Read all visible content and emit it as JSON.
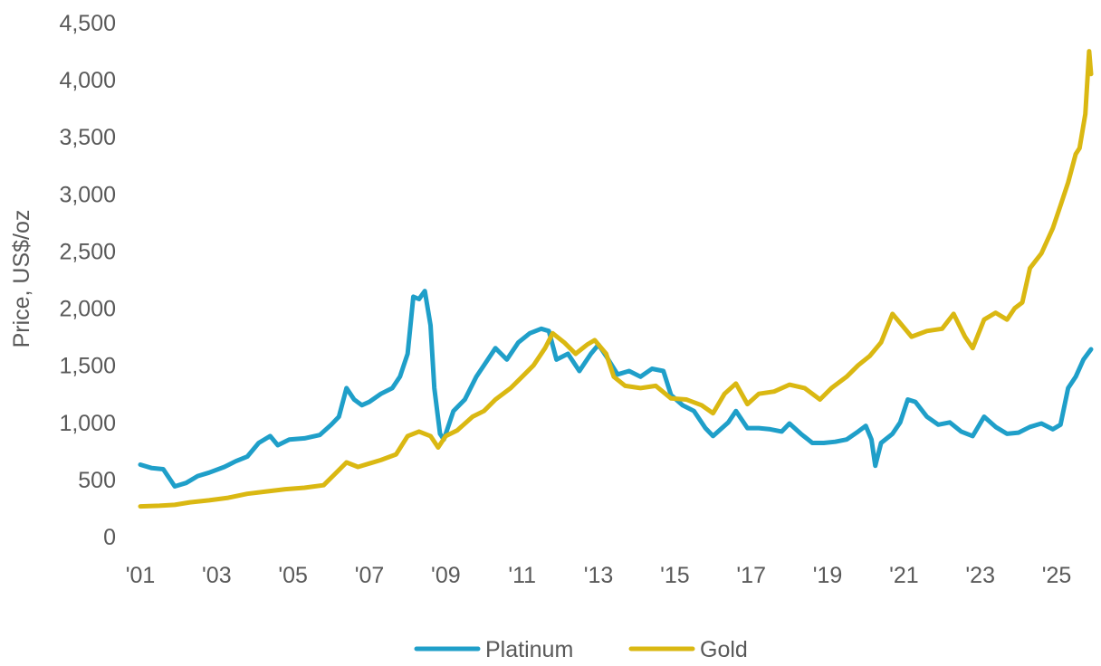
{
  "chart_data": {
    "type": "line",
    "title": "",
    "xlabel": "",
    "ylabel": "Price, US$/oz",
    "ylim": [
      0,
      4500
    ],
    "xlim": [
      2001.0,
      2025.9
    ],
    "yticks": [
      {
        "value": 0,
        "label": "0"
      },
      {
        "value": 500,
        "label": "500"
      },
      {
        "value": 1000,
        "label": "1,000"
      },
      {
        "value": 1500,
        "label": "1,500"
      },
      {
        "value": 2000,
        "label": "2,000"
      },
      {
        "value": 2500,
        "label": "2,500"
      },
      {
        "value": 3000,
        "label": "3,000"
      },
      {
        "value": 3500,
        "label": "3,500"
      },
      {
        "value": 4000,
        "label": "4,000"
      },
      {
        "value": 4500,
        "label": "4,500"
      }
    ],
    "xticks": [
      {
        "value": 2001,
        "label": "'01"
      },
      {
        "value": 2003,
        "label": "'03"
      },
      {
        "value": 2005,
        "label": "'05"
      },
      {
        "value": 2007,
        "label": "'07"
      },
      {
        "value": 2009,
        "label": "'09"
      },
      {
        "value": 2011,
        "label": "'11"
      },
      {
        "value": 2013,
        "label": "'13"
      },
      {
        "value": 2015,
        "label": "'15"
      },
      {
        "value": 2017,
        "label": "'17"
      },
      {
        "value": 2019,
        "label": "'19"
      },
      {
        "value": 2021,
        "label": "'21"
      },
      {
        "value": 2023,
        "label": "'23"
      },
      {
        "value": 2025,
        "label": "'25"
      }
    ],
    "grid": false,
    "legend_position": "bottom-center",
    "series": [
      {
        "name": "Platinum",
        "color": "#1f9fc9",
        "points": [
          [
            2001.0,
            630
          ],
          [
            2001.3,
            600
          ],
          [
            2001.6,
            590
          ],
          [
            2001.9,
            440
          ],
          [
            2002.2,
            470
          ],
          [
            2002.5,
            530
          ],
          [
            2002.8,
            560
          ],
          [
            2003.2,
            610
          ],
          [
            2003.5,
            660
          ],
          [
            2003.8,
            700
          ],
          [
            2004.1,
            820
          ],
          [
            2004.4,
            880
          ],
          [
            2004.6,
            800
          ],
          [
            2004.9,
            850
          ],
          [
            2005.3,
            860
          ],
          [
            2005.7,
            890
          ],
          [
            2006.0,
            980
          ],
          [
            2006.2,
            1050
          ],
          [
            2006.4,
            1300
          ],
          [
            2006.6,
            1200
          ],
          [
            2006.8,
            1150
          ],
          [
            2007.0,
            1180
          ],
          [
            2007.3,
            1250
          ],
          [
            2007.6,
            1300
          ],
          [
            2007.8,
            1400
          ],
          [
            2008.0,
            1600
          ],
          [
            2008.15,
            2100
          ],
          [
            2008.3,
            2080
          ],
          [
            2008.45,
            2150
          ],
          [
            2008.6,
            1850
          ],
          [
            2008.7,
            1300
          ],
          [
            2008.85,
            900
          ],
          [
            2008.95,
            850
          ],
          [
            2009.2,
            1100
          ],
          [
            2009.5,
            1200
          ],
          [
            2009.8,
            1400
          ],
          [
            2010.0,
            1500
          ],
          [
            2010.3,
            1650
          ],
          [
            2010.6,
            1550
          ],
          [
            2010.9,
            1700
          ],
          [
            2011.2,
            1780
          ],
          [
            2011.5,
            1820
          ],
          [
            2011.7,
            1800
          ],
          [
            2011.9,
            1550
          ],
          [
            2012.2,
            1600
          ],
          [
            2012.5,
            1450
          ],
          [
            2012.8,
            1600
          ],
          [
            2013.0,
            1680
          ],
          [
            2013.2,
            1580
          ],
          [
            2013.5,
            1420
          ],
          [
            2013.8,
            1450
          ],
          [
            2014.1,
            1400
          ],
          [
            2014.4,
            1470
          ],
          [
            2014.7,
            1450
          ],
          [
            2014.9,
            1240
          ],
          [
            2015.2,
            1150
          ],
          [
            2015.5,
            1100
          ],
          [
            2015.8,
            950
          ],
          [
            2016.0,
            880
          ],
          [
            2016.4,
            1000
          ],
          [
            2016.6,
            1100
          ],
          [
            2016.9,
            950
          ],
          [
            2017.2,
            950
          ],
          [
            2017.5,
            940
          ],
          [
            2017.8,
            920
          ],
          [
            2018.0,
            990
          ],
          [
            2018.3,
            900
          ],
          [
            2018.6,
            820
          ],
          [
            2018.9,
            820
          ],
          [
            2019.2,
            830
          ],
          [
            2019.5,
            850
          ],
          [
            2019.8,
            920
          ],
          [
            2020.0,
            970
          ],
          [
            2020.15,
            850
          ],
          [
            2020.25,
            620
          ],
          [
            2020.4,
            820
          ],
          [
            2020.7,
            900
          ],
          [
            2020.9,
            1000
          ],
          [
            2021.1,
            1200
          ],
          [
            2021.3,
            1180
          ],
          [
            2021.6,
            1050
          ],
          [
            2021.9,
            980
          ],
          [
            2022.2,
            1000
          ],
          [
            2022.5,
            920
          ],
          [
            2022.8,
            880
          ],
          [
            2023.1,
            1050
          ],
          [
            2023.4,
            960
          ],
          [
            2023.7,
            900
          ],
          [
            2024.0,
            910
          ],
          [
            2024.3,
            960
          ],
          [
            2024.6,
            990
          ],
          [
            2024.9,
            940
          ],
          [
            2025.1,
            980
          ],
          [
            2025.3,
            1300
          ],
          [
            2025.5,
            1400
          ],
          [
            2025.7,
            1550
          ],
          [
            2025.9,
            1640
          ]
        ]
      },
      {
        "name": "Gold",
        "color": "#dab812",
        "points": [
          [
            2001.0,
            265
          ],
          [
            2001.5,
            270
          ],
          [
            2001.9,
            278
          ],
          [
            2002.3,
            300
          ],
          [
            2002.8,
            318
          ],
          [
            2003.3,
            340
          ],
          [
            2003.8,
            375
          ],
          [
            2004.3,
            395
          ],
          [
            2004.8,
            415
          ],
          [
            2005.3,
            428
          ],
          [
            2005.8,
            450
          ],
          [
            2006.1,
            550
          ],
          [
            2006.4,
            650
          ],
          [
            2006.7,
            610
          ],
          [
            2007.0,
            640
          ],
          [
            2007.3,
            670
          ],
          [
            2007.7,
            720
          ],
          [
            2008.0,
            880
          ],
          [
            2008.3,
            920
          ],
          [
            2008.6,
            880
          ],
          [
            2008.8,
            780
          ],
          [
            2009.0,
            880
          ],
          [
            2009.3,
            930
          ],
          [
            2009.7,
            1050
          ],
          [
            2010.0,
            1100
          ],
          [
            2010.3,
            1200
          ],
          [
            2010.7,
            1300
          ],
          [
            2011.0,
            1400
          ],
          [
            2011.3,
            1500
          ],
          [
            2011.6,
            1650
          ],
          [
            2011.8,
            1780
          ],
          [
            2012.1,
            1700
          ],
          [
            2012.4,
            1600
          ],
          [
            2012.7,
            1680
          ],
          [
            2012.9,
            1720
          ],
          [
            2013.2,
            1600
          ],
          [
            2013.4,
            1400
          ],
          [
            2013.7,
            1320
          ],
          [
            2014.1,
            1300
          ],
          [
            2014.5,
            1320
          ],
          [
            2014.9,
            1210
          ],
          [
            2015.3,
            1200
          ],
          [
            2015.7,
            1150
          ],
          [
            2016.0,
            1080
          ],
          [
            2016.3,
            1250
          ],
          [
            2016.6,
            1340
          ],
          [
            2016.9,
            1160
          ],
          [
            2017.2,
            1250
          ],
          [
            2017.6,
            1270
          ],
          [
            2018.0,
            1330
          ],
          [
            2018.4,
            1300
          ],
          [
            2018.8,
            1200
          ],
          [
            2019.1,
            1300
          ],
          [
            2019.5,
            1400
          ],
          [
            2019.8,
            1500
          ],
          [
            2020.1,
            1580
          ],
          [
            2020.4,
            1700
          ],
          [
            2020.7,
            1950
          ],
          [
            2020.9,
            1870
          ],
          [
            2021.2,
            1750
          ],
          [
            2021.6,
            1800
          ],
          [
            2022.0,
            1820
          ],
          [
            2022.3,
            1950
          ],
          [
            2022.6,
            1750
          ],
          [
            2022.8,
            1650
          ],
          [
            2023.1,
            1900
          ],
          [
            2023.4,
            1960
          ],
          [
            2023.7,
            1900
          ],
          [
            2023.9,
            2000
          ],
          [
            2024.1,
            2050
          ],
          [
            2024.3,
            2350
          ],
          [
            2024.6,
            2480
          ],
          [
            2024.9,
            2700
          ],
          [
            2025.1,
            2900
          ],
          [
            2025.3,
            3100
          ],
          [
            2025.5,
            3350
          ],
          [
            2025.6,
            3400
          ],
          [
            2025.75,
            3700
          ],
          [
            2025.85,
            4250
          ],
          [
            2025.9,
            4050
          ]
        ]
      }
    ]
  }
}
